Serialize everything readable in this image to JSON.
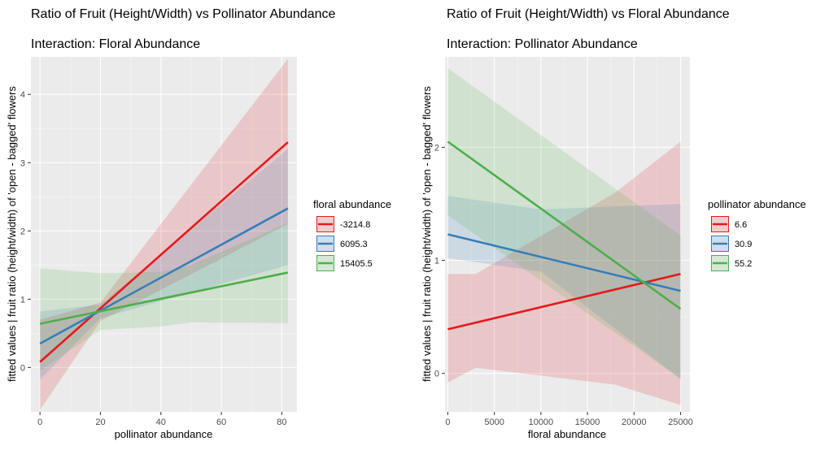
{
  "chart_data": [
    {
      "type": "line",
      "title": "Ratio of Fruit (Height/Width) vs Pollinator Abundance",
      "subtitle": "Interaction: Floral Abundance",
      "xlabel": "pollinator abundance",
      "ylabel": "fitted values | fruit ratio (height/width) of 'open - bagged' flowers",
      "xlim": [
        -3,
        85
      ],
      "ylim": [
        -0.65,
        4.55
      ],
      "xticks": [
        0,
        20,
        40,
        60,
        80
      ],
      "yticks": [
        0,
        1,
        2,
        3,
        4
      ],
      "legend_title": "floral abundance",
      "legend_position": "right",
      "series": [
        {
          "name": "-3214.8",
          "color": "#E41A1C",
          "x": [
            0,
            82
          ],
          "y": [
            0.08,
            3.3
          ],
          "band": {
            "x": [
              0,
              20,
              82
            ],
            "lower": [
              -0.62,
              0.68,
              2.1
            ],
            "upper": [
              0.7,
              0.95,
              4.52
            ]
          }
        },
        {
          "name": "6095.3",
          "color": "#377EB8",
          "x": [
            0,
            82
          ],
          "y": [
            0.35,
            2.33
          ],
          "band": {
            "x": [
              0,
              20,
              82
            ],
            "lower": [
              -0.18,
              0.72,
              1.5
            ],
            "upper": [
              0.82,
              0.92,
              3.2
            ]
          }
        },
        {
          "name": "15405.5",
          "color": "#4DAF4A",
          "x": [
            0,
            82
          ],
          "y": [
            0.64,
            1.39
          ],
          "band": {
            "x": [
              0,
              20,
              40,
              50,
              82
            ],
            "lower": [
              -0.05,
              0.55,
              0.6,
              0.66,
              0.65
            ],
            "upper": [
              1.45,
              1.38,
              1.4,
              1.5,
              2.12
            ]
          }
        }
      ]
    },
    {
      "type": "line",
      "title": "Ratio of Fruit (Height/Width) vs Floral Abundance",
      "subtitle": "Interaction: Pollinator Abundance",
      "xlabel": "floral abundance",
      "ylabel": "fitted values | fruit ratio (height/width) of 'open - bagged' flowers",
      "xlim": [
        -300,
        26000
      ],
      "ylim": [
        -0.34,
        2.8
      ],
      "xticks": [
        0,
        5000,
        10000,
        15000,
        20000,
        25000
      ],
      "yticks": [
        0,
        1,
        2
      ],
      "legend_title": "pollinator abundance",
      "legend_position": "right",
      "series": [
        {
          "name": "6.6",
          "color": "#E41A1C",
          "x": [
            0,
            25000
          ],
          "y": [
            0.39,
            0.88
          ],
          "band": {
            "x": [
              0,
              3000,
              18000,
              25000
            ],
            "lower": [
              -0.08,
              0.05,
              -0.1,
              -0.28
            ],
            "upper": [
              0.88,
              0.88,
              1.6,
              2.05
            ]
          }
        },
        {
          "name": "30.9",
          "color": "#377EB8",
          "x": [
            0,
            25000
          ],
          "y": [
            1.23,
            0.73
          ],
          "band": {
            "x": [
              0,
              10000,
              25000
            ],
            "lower": [
              1.02,
              0.9,
              -0.05
            ],
            "upper": [
              1.57,
              1.45,
              1.5
            ]
          }
        },
        {
          "name": "55.2",
          "color": "#4DAF4A",
          "x": [
            0,
            25000
          ],
          "y": [
            2.05,
            0.57
          ],
          "band": {
            "x": [
              0,
              25000
            ],
            "lower": [
              1.4,
              -0.05
            ],
            "upper": [
              2.7,
              1.22
            ]
          }
        }
      ]
    }
  ]
}
